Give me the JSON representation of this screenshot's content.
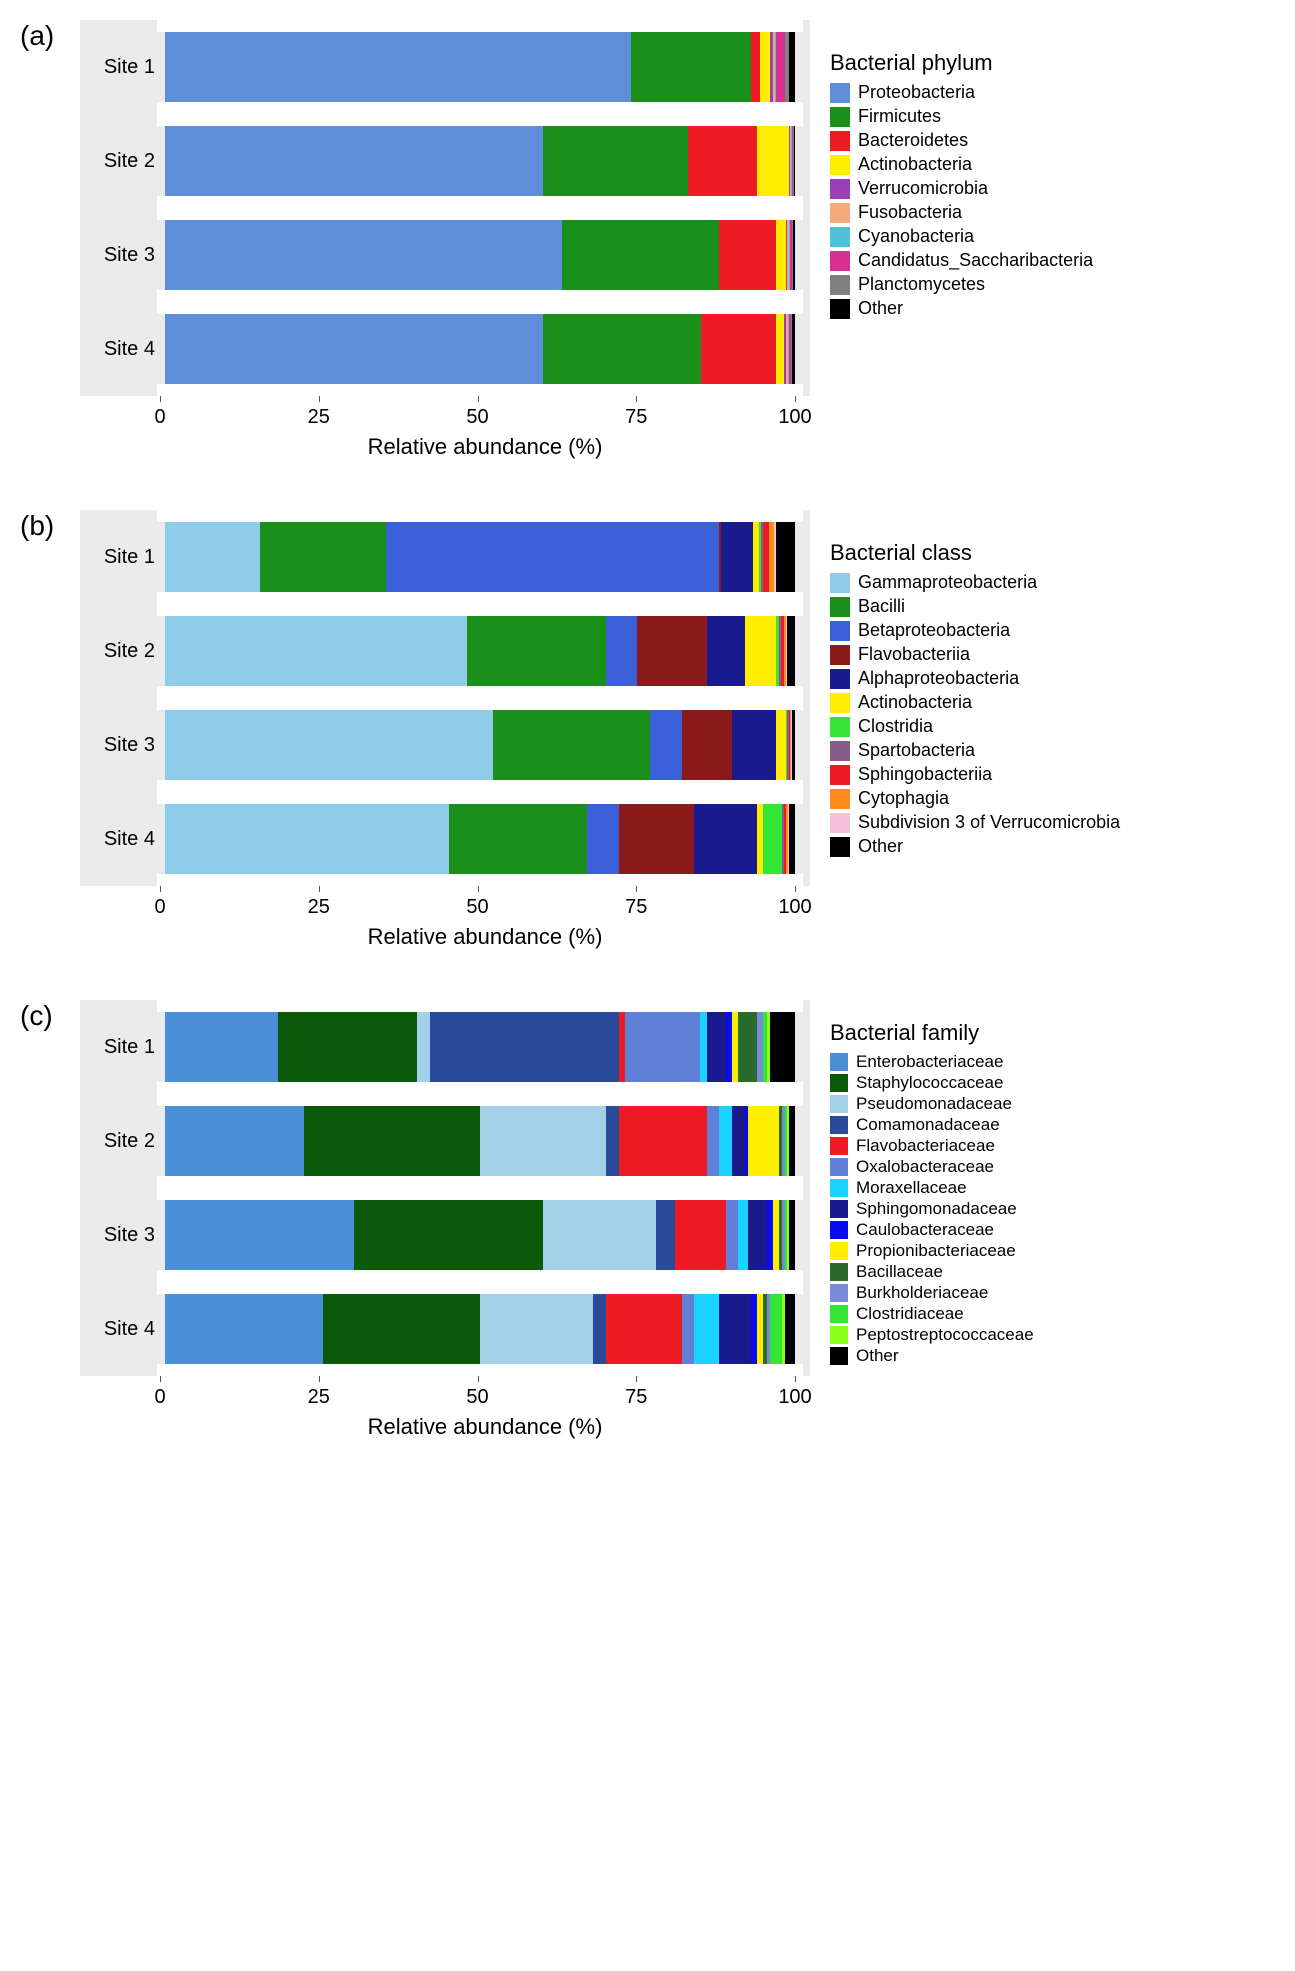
{
  "axis": {
    "x_title": "Relative abundance (%)",
    "x_ticks": [
      0,
      25,
      50,
      75,
      100
    ]
  },
  "panels": [
    {
      "label": "(a)",
      "legend_title": "Bacterial phylum",
      "legend_compact": false,
      "categories": [
        {
          "name": "Proteobacteria",
          "color": "#5f8fd8"
        },
        {
          "name": "Firmicutes",
          "color": "#1a8f1a"
        },
        {
          "name": "Bacteroidetes",
          "color": "#ed1c24"
        },
        {
          "name": "Actinobacteria",
          "color": "#ffee00"
        },
        {
          "name": "Verrucomicrobia",
          "color": "#9a3fb5"
        },
        {
          "name": "Fusobacteria",
          "color": "#f5a978"
        },
        {
          "name": "Cyanobacteria",
          "color": "#4fc3d6"
        },
        {
          "name": "Candidatus_Saccharibacteria",
          "color": "#d63090"
        },
        {
          "name": "Planctomycetes",
          "color": "#808080"
        },
        {
          "name": "Other",
          "color": "#000000"
        }
      ],
      "sites": [
        {
          "label": "Site 1",
          "values": [
            74,
            19,
            1.5,
            1.5,
            0.5,
            0.3,
            0.2,
            1.5,
            0.5,
            1
          ]
        },
        {
          "label": "Site 2",
          "values": [
            60,
            23,
            11,
            5,
            0.2,
            0.2,
            0.2,
            0.1,
            0.1,
            0.2
          ]
        },
        {
          "label": "Site 3",
          "values": [
            63,
            25,
            9,
            1.5,
            0.3,
            0.2,
            0.2,
            0.3,
            0.2,
            0.3
          ]
        },
        {
          "label": "Site 4",
          "values": [
            60,
            25,
            12,
            1.2,
            0.4,
            0.3,
            0.2,
            0.3,
            0.2,
            0.4
          ]
        }
      ]
    },
    {
      "label": "(b)",
      "legend_title": "Bacterial class",
      "legend_compact": false,
      "categories": [
        {
          "name": "Gammaproteobacteria",
          "color": "#8fccea"
        },
        {
          "name": "Bacilli",
          "color": "#1a8f1a"
        },
        {
          "name": "Betaproteobacteria",
          "color": "#3a5fd8"
        },
        {
          "name": "Flavobacteriia",
          "color": "#8b1a1a"
        },
        {
          "name": "Alphaproteobacteria",
          "color": "#1a1a8f"
        },
        {
          "name": "Actinobacteria",
          "color": "#ffee00"
        },
        {
          "name": "Clostridia",
          "color": "#35e535"
        },
        {
          "name": "Spartobacteria",
          "color": "#8a5a8a"
        },
        {
          "name": "Sphingobacteriia",
          "color": "#ed1c24"
        },
        {
          "name": "Cytophagia",
          "color": "#ff8c1a"
        },
        {
          "name": "Subdivision 3 of Verrucomicrobia",
          "color": "#f5c0d8"
        },
        {
          "name": "Other",
          "color": "#000000"
        }
      ],
      "sites": [
        {
          "label": "Site 1",
          "values": [
            15,
            20,
            53,
            0.3,
            5,
            1,
            0.3,
            0.3,
            1,
            0.8,
            0.3,
            3
          ]
        },
        {
          "label": "Site 2",
          "values": [
            48,
            22,
            5,
            11,
            6,
            5,
            0.5,
            0.3,
            0.5,
            0.3,
            0.2,
            1.2
          ]
        },
        {
          "label": "Site 3",
          "values": [
            52,
            25,
            5,
            8,
            7,
            1.5,
            0.3,
            0.2,
            0.2,
            0.2,
            0.1,
            0.5
          ]
        },
        {
          "label": "Site 4",
          "values": [
            45,
            22,
            5,
            12,
            10,
            1,
            3,
            0.3,
            0.3,
            0.3,
            0.1,
            1
          ]
        }
      ]
    },
    {
      "label": "(c)",
      "legend_title": "Bacterial family",
      "legend_compact": true,
      "categories": [
        {
          "name": "Enterobacteriaceae",
          "color": "#4a8fd8"
        },
        {
          "name": "Staphylococcaceae",
          "color": "#0a5a0a"
        },
        {
          "name": "Pseudomonadaceae",
          "color": "#a5d0ea"
        },
        {
          "name": "Comamonadaceae",
          "color": "#2a4a9a"
        },
        {
          "name": "Flavobacteriaceae",
          "color": "#ed1c24"
        },
        {
          "name": "Oxalobacteraceae",
          "color": "#6080d8"
        },
        {
          "name": "Moraxellaceae",
          "color": "#1ad4ff"
        },
        {
          "name": "Sphingomonadaceae",
          "color": "#1a1a8f"
        },
        {
          "name": "Caulobacteraceae",
          "color": "#0a0aee"
        },
        {
          "name": "Propionibacteriaceae",
          "color": "#ffee00"
        },
        {
          "name": "Bacillaceae",
          "color": "#2a6a2a"
        },
        {
          "name": "Burkholderiaceae",
          "color": "#7a8ad8"
        },
        {
          "name": "Clostridiaceae",
          "color": "#35e535"
        },
        {
          "name": "Peptostreptococcaceae",
          "color": "#8aff1a"
        },
        {
          "name": "Other",
          "color": "#000000"
        }
      ],
      "sites": [
        {
          "label": "Site 1",
          "values": [
            18,
            22,
            2,
            30,
            1,
            12,
            1,
            3,
            1,
            1,
            3,
            1,
            0.5,
            0.5,
            4
          ]
        },
        {
          "label": "Site 2",
          "values": [
            22,
            28,
            20,
            2,
            14,
            2,
            2,
            2,
            0.5,
            5,
            0.5,
            0.5,
            0.3,
            0.2,
            1
          ]
        },
        {
          "label": "Site 3",
          "values": [
            30,
            30,
            18,
            3,
            8,
            2,
            1.5,
            3,
            1,
            1,
            0.5,
            0.5,
            0.3,
            0.2,
            1
          ]
        },
        {
          "label": "Site 4",
          "values": [
            25,
            25,
            18,
            2,
            12,
            2,
            4,
            5,
            1,
            1,
            0.5,
            0.5,
            2,
            0.5,
            1.5
          ]
        }
      ]
    }
  ]
}
